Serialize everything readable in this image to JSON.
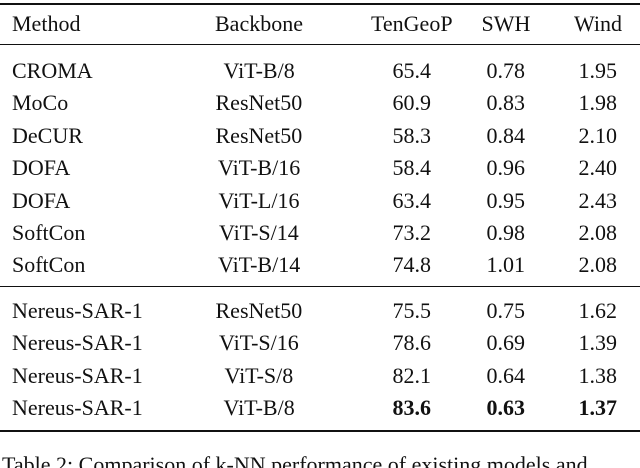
{
  "table": {
    "header": [
      "Method",
      "Backbone",
      "TenGeoP",
      "SWH",
      "Wind"
    ],
    "groups": [
      [
        [
          "CROMA",
          "ViT-B/8",
          "65.4",
          "0.78",
          "1.95"
        ],
        [
          "MoCo",
          "ResNet50",
          "60.9",
          "0.83",
          "1.98"
        ],
        [
          "DeCUR",
          "ResNet50",
          "58.3",
          "0.84",
          "2.10"
        ],
        [
          "DOFA",
          "ViT-B/16",
          "58.4",
          "0.96",
          "2.40"
        ],
        [
          "DOFA",
          "ViT-L/16",
          "63.4",
          "0.95",
          "2.43"
        ],
        [
          "SoftCon",
          "ViT-S/14",
          "73.2",
          "0.98",
          "2.08"
        ],
        [
          "SoftCon",
          "ViT-B/14",
          "74.8",
          "1.01",
          "2.08"
        ]
      ],
      [
        [
          "Nereus-SAR-1",
          "ResNet50",
          "75.5",
          "0.75",
          "1.62"
        ],
        [
          "Nereus-SAR-1",
          "ViT-S/16",
          "78.6",
          "0.69",
          "1.39"
        ],
        [
          "Nereus-SAR-1",
          "ViT-S/8",
          "82.1",
          "0.64",
          "1.38"
        ],
        [
          "Nereus-SAR-1",
          "ViT-B/8",
          "83.6",
          "0.63",
          "1.37"
        ]
      ]
    ]
  },
  "caption": "Table 2: Comparison of k-NN performance of existing models and"
}
